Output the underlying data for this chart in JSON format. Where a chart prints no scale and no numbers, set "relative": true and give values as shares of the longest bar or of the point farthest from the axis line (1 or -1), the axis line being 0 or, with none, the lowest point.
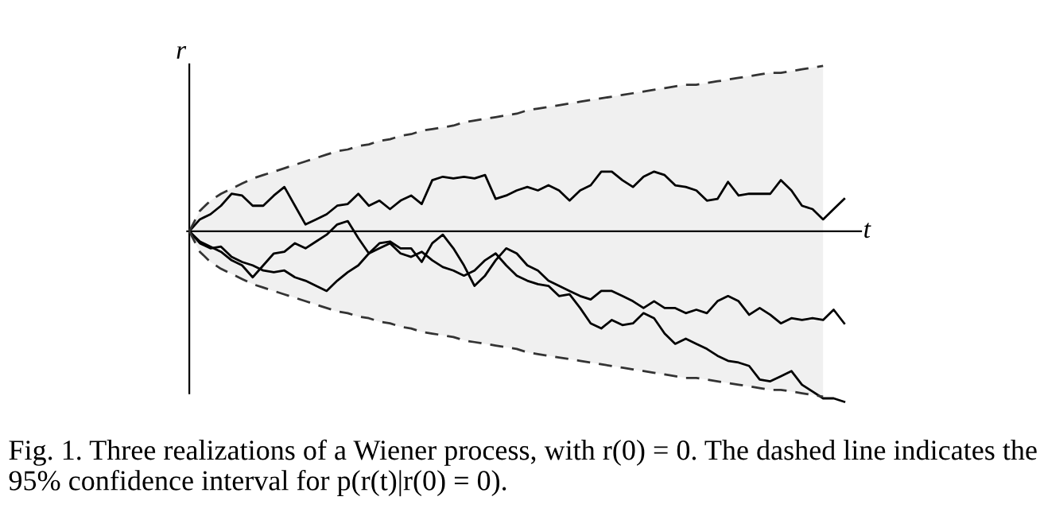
{
  "chart_data": {
    "type": "line",
    "relative": true,
    "xlabel": "t",
    "ylabel": "r",
    "marker": "none",
    "categories": [
      null,
      null,
      null,
      null,
      null,
      null,
      null,
      null,
      null,
      null,
      null,
      null,
      null,
      null,
      null,
      null,
      null,
      null,
      null,
      null,
      null,
      null,
      null,
      null,
      null,
      null,
      null,
      null,
      null,
      null,
      null,
      null,
      null,
      null,
      null,
      null,
      null,
      null,
      null,
      null,
      null,
      null,
      null,
      null,
      null,
      null,
      null,
      null,
      null,
      null,
      null,
      null,
      null,
      null,
      null,
      null,
      null,
      null,
      null,
      null,
      null,
      null,
      null
    ],
    "series": [
      {
        "color": "#000000",
        "line_style": "solid",
        "values": [
          0,
          0.07,
          0.1,
          0.15,
          0.22,
          0.21,
          0.15,
          0.15,
          0.21,
          0.26,
          0.15,
          0.04,
          0.07,
          0.1,
          0.15,
          0.16,
          0.22,
          0.15,
          0.18,
          0.13,
          0.18,
          0.21,
          0.16,
          0.3,
          0.32,
          0.31,
          0.32,
          0.31,
          0.33,
          0.19,
          0.21,
          0.24,
          0.26,
          0.24,
          0.27,
          0.24,
          0.18,
          0.24,
          0.27,
          0.35,
          0.35,
          0.3,
          0.26,
          0.32,
          0.35,
          0.33,
          0.27,
          0.26,
          0.24,
          0.18,
          0.19,
          0.29,
          0.21,
          0.22,
          0.22,
          0.22,
          0.3,
          0.24,
          0.15,
          0.13,
          0.07,
          0.13,
          0.19
        ]
      },
      {
        "color": "#000000",
        "line_style": "solid",
        "values": [
          0,
          -0.06,
          -0.09,
          -0.12,
          -0.17,
          -0.2,
          -0.27,
          -0.2,
          -0.13,
          -0.12,
          -0.07,
          -0.1,
          -0.06,
          -0.02,
          0.04,
          0.06,
          -0.04,
          -0.13,
          -0.07,
          -0.06,
          -0.1,
          -0.1,
          -0.18,
          -0.07,
          -0.02,
          -0.1,
          -0.2,
          -0.32,
          -0.26,
          -0.17,
          -0.1,
          -0.13,
          -0.2,
          -0.23,
          -0.29,
          -0.32,
          -0.35,
          -0.38,
          -0.4,
          -0.35,
          -0.35,
          -0.38,
          -0.41,
          -0.45,
          -0.41,
          -0.45,
          -0.45,
          -0.48,
          -0.46,
          -0.48,
          -0.41,
          -0.38,
          -0.41,
          -0.49,
          -0.45,
          -0.49,
          -0.54,
          -0.51,
          -0.52,
          -0.51,
          -0.52,
          -0.46,
          -0.54
        ]
      },
      {
        "color": "#000000",
        "line_style": "solid",
        "values": [
          0,
          -0.07,
          -0.1,
          -0.09,
          -0.15,
          -0.18,
          -0.2,
          -0.23,
          -0.24,
          -0.23,
          -0.27,
          -0.29,
          -0.32,
          -0.35,
          -0.29,
          -0.24,
          -0.2,
          -0.13,
          -0.1,
          -0.07,
          -0.13,
          -0.15,
          -0.12,
          -0.17,
          -0.21,
          -0.23,
          -0.26,
          -0.23,
          -0.17,
          -0.13,
          -0.2,
          -0.26,
          -0.29,
          -0.31,
          -0.32,
          -0.38,
          -0.37,
          -0.45,
          -0.54,
          -0.57,
          -0.52,
          -0.55,
          -0.54,
          -0.48,
          -0.51,
          -0.6,
          -0.66,
          -0.63,
          -0.66,
          -0.69,
          -0.73,
          -0.76,
          -0.77,
          -0.79,
          -0.87,
          -0.88,
          -0.85,
          -0.82,
          -0.9,
          -0.94,
          -0.98,
          -0.98,
          -1.0
        ]
      },
      {
        "color": "#333333",
        "line_style": "dashed",
        "values": [
          0,
          0.12,
          0.18,
          0.22,
          0.25,
          0.28,
          0.31,
          0.33,
          0.35,
          0.37,
          0.39,
          0.41,
          0.43,
          0.45,
          0.47,
          0.48,
          0.5,
          0.51,
          0.53,
          0.54,
          0.56,
          0.57,
          0.59,
          0.6,
          0.61,
          0.62,
          0.64,
          0.65,
          0.66,
          0.67,
          0.68,
          0.69,
          0.71,
          0.72,
          0.73,
          0.74,
          0.75,
          0.76,
          0.77,
          0.78,
          0.79,
          0.8,
          0.81,
          0.82,
          0.83,
          0.84,
          0.85,
          0.86,
          0.86,
          0.87,
          0.88,
          0.89,
          0.9,
          0.91,
          0.92,
          0.93,
          0.93,
          0.94,
          0.95,
          0.96,
          0.97,
          null,
          null
        ],
        "lower": [
          0,
          -0.12,
          -0.18,
          -0.22,
          -0.25,
          -0.28,
          -0.31,
          -0.33,
          -0.35,
          -0.37,
          -0.39,
          -0.41,
          -0.43,
          -0.45,
          -0.47,
          -0.48,
          -0.5,
          -0.51,
          -0.53,
          -0.54,
          -0.56,
          -0.57,
          -0.59,
          -0.6,
          -0.61,
          -0.62,
          -0.64,
          -0.65,
          -0.66,
          -0.67,
          -0.68,
          -0.69,
          -0.71,
          -0.72,
          -0.73,
          -0.74,
          -0.75,
          -0.76,
          -0.77,
          -0.78,
          -0.79,
          -0.8,
          -0.81,
          -0.82,
          -0.83,
          -0.84,
          -0.85,
          -0.86,
          -0.86,
          -0.87,
          -0.88,
          -0.89,
          -0.9,
          -0.91,
          -0.92,
          -0.93,
          -0.93,
          -0.94,
          -0.95,
          -0.96,
          -0.97,
          null,
          null
        ],
        "upper": [
          0,
          0.12,
          0.18,
          0.22,
          0.25,
          0.28,
          0.31,
          0.33,
          0.35,
          0.37,
          0.39,
          0.41,
          0.43,
          0.45,
          0.47,
          0.48,
          0.5,
          0.51,
          0.53,
          0.54,
          0.56,
          0.57,
          0.59,
          0.6,
          0.61,
          0.62,
          0.64,
          0.65,
          0.66,
          0.67,
          0.68,
          0.69,
          0.71,
          0.72,
          0.73,
          0.74,
          0.75,
          0.76,
          0.77,
          0.78,
          0.79,
          0.8,
          0.81,
          0.82,
          0.83,
          0.84,
          0.85,
          0.86,
          0.86,
          0.87,
          0.88,
          0.89,
          0.9,
          0.91,
          0.92,
          0.93,
          0.93,
          0.94,
          0.95,
          0.96,
          0.97,
          null,
          null
        ]
      },
      {
        "color": "#333333",
        "line_style": "dashed",
        "values": [
          0,
          -0.12,
          -0.18,
          -0.22,
          -0.25,
          -0.28,
          -0.31,
          -0.33,
          -0.35,
          -0.37,
          -0.39,
          -0.41,
          -0.43,
          -0.45,
          -0.47,
          -0.48,
          -0.5,
          -0.51,
          -0.53,
          -0.54,
          -0.56,
          -0.57,
          -0.59,
          -0.6,
          -0.61,
          -0.62,
          -0.64,
          -0.65,
          -0.66,
          -0.67,
          -0.68,
          -0.69,
          -0.71,
          -0.72,
          -0.73,
          -0.74,
          -0.75,
          -0.76,
          -0.77,
          -0.78,
          -0.79,
          -0.8,
          -0.81,
          -0.82,
          -0.83,
          -0.84,
          -0.85,
          -0.86,
          -0.86,
          -0.87,
          -0.88,
          -0.89,
          -0.9,
          -0.91,
          -0.92,
          -0.93,
          -0.93,
          -0.94,
          -0.95,
          -0.96,
          -0.97,
          null,
          null
        ]
      }
    ],
    "annotations": [
      "Fig. 1. Three realizations of a Wiener process, with r(0) = 0. The dashed line indicates the 95% confidence interval for p(r(t)|r(0) = 0)."
    ]
  }
}
